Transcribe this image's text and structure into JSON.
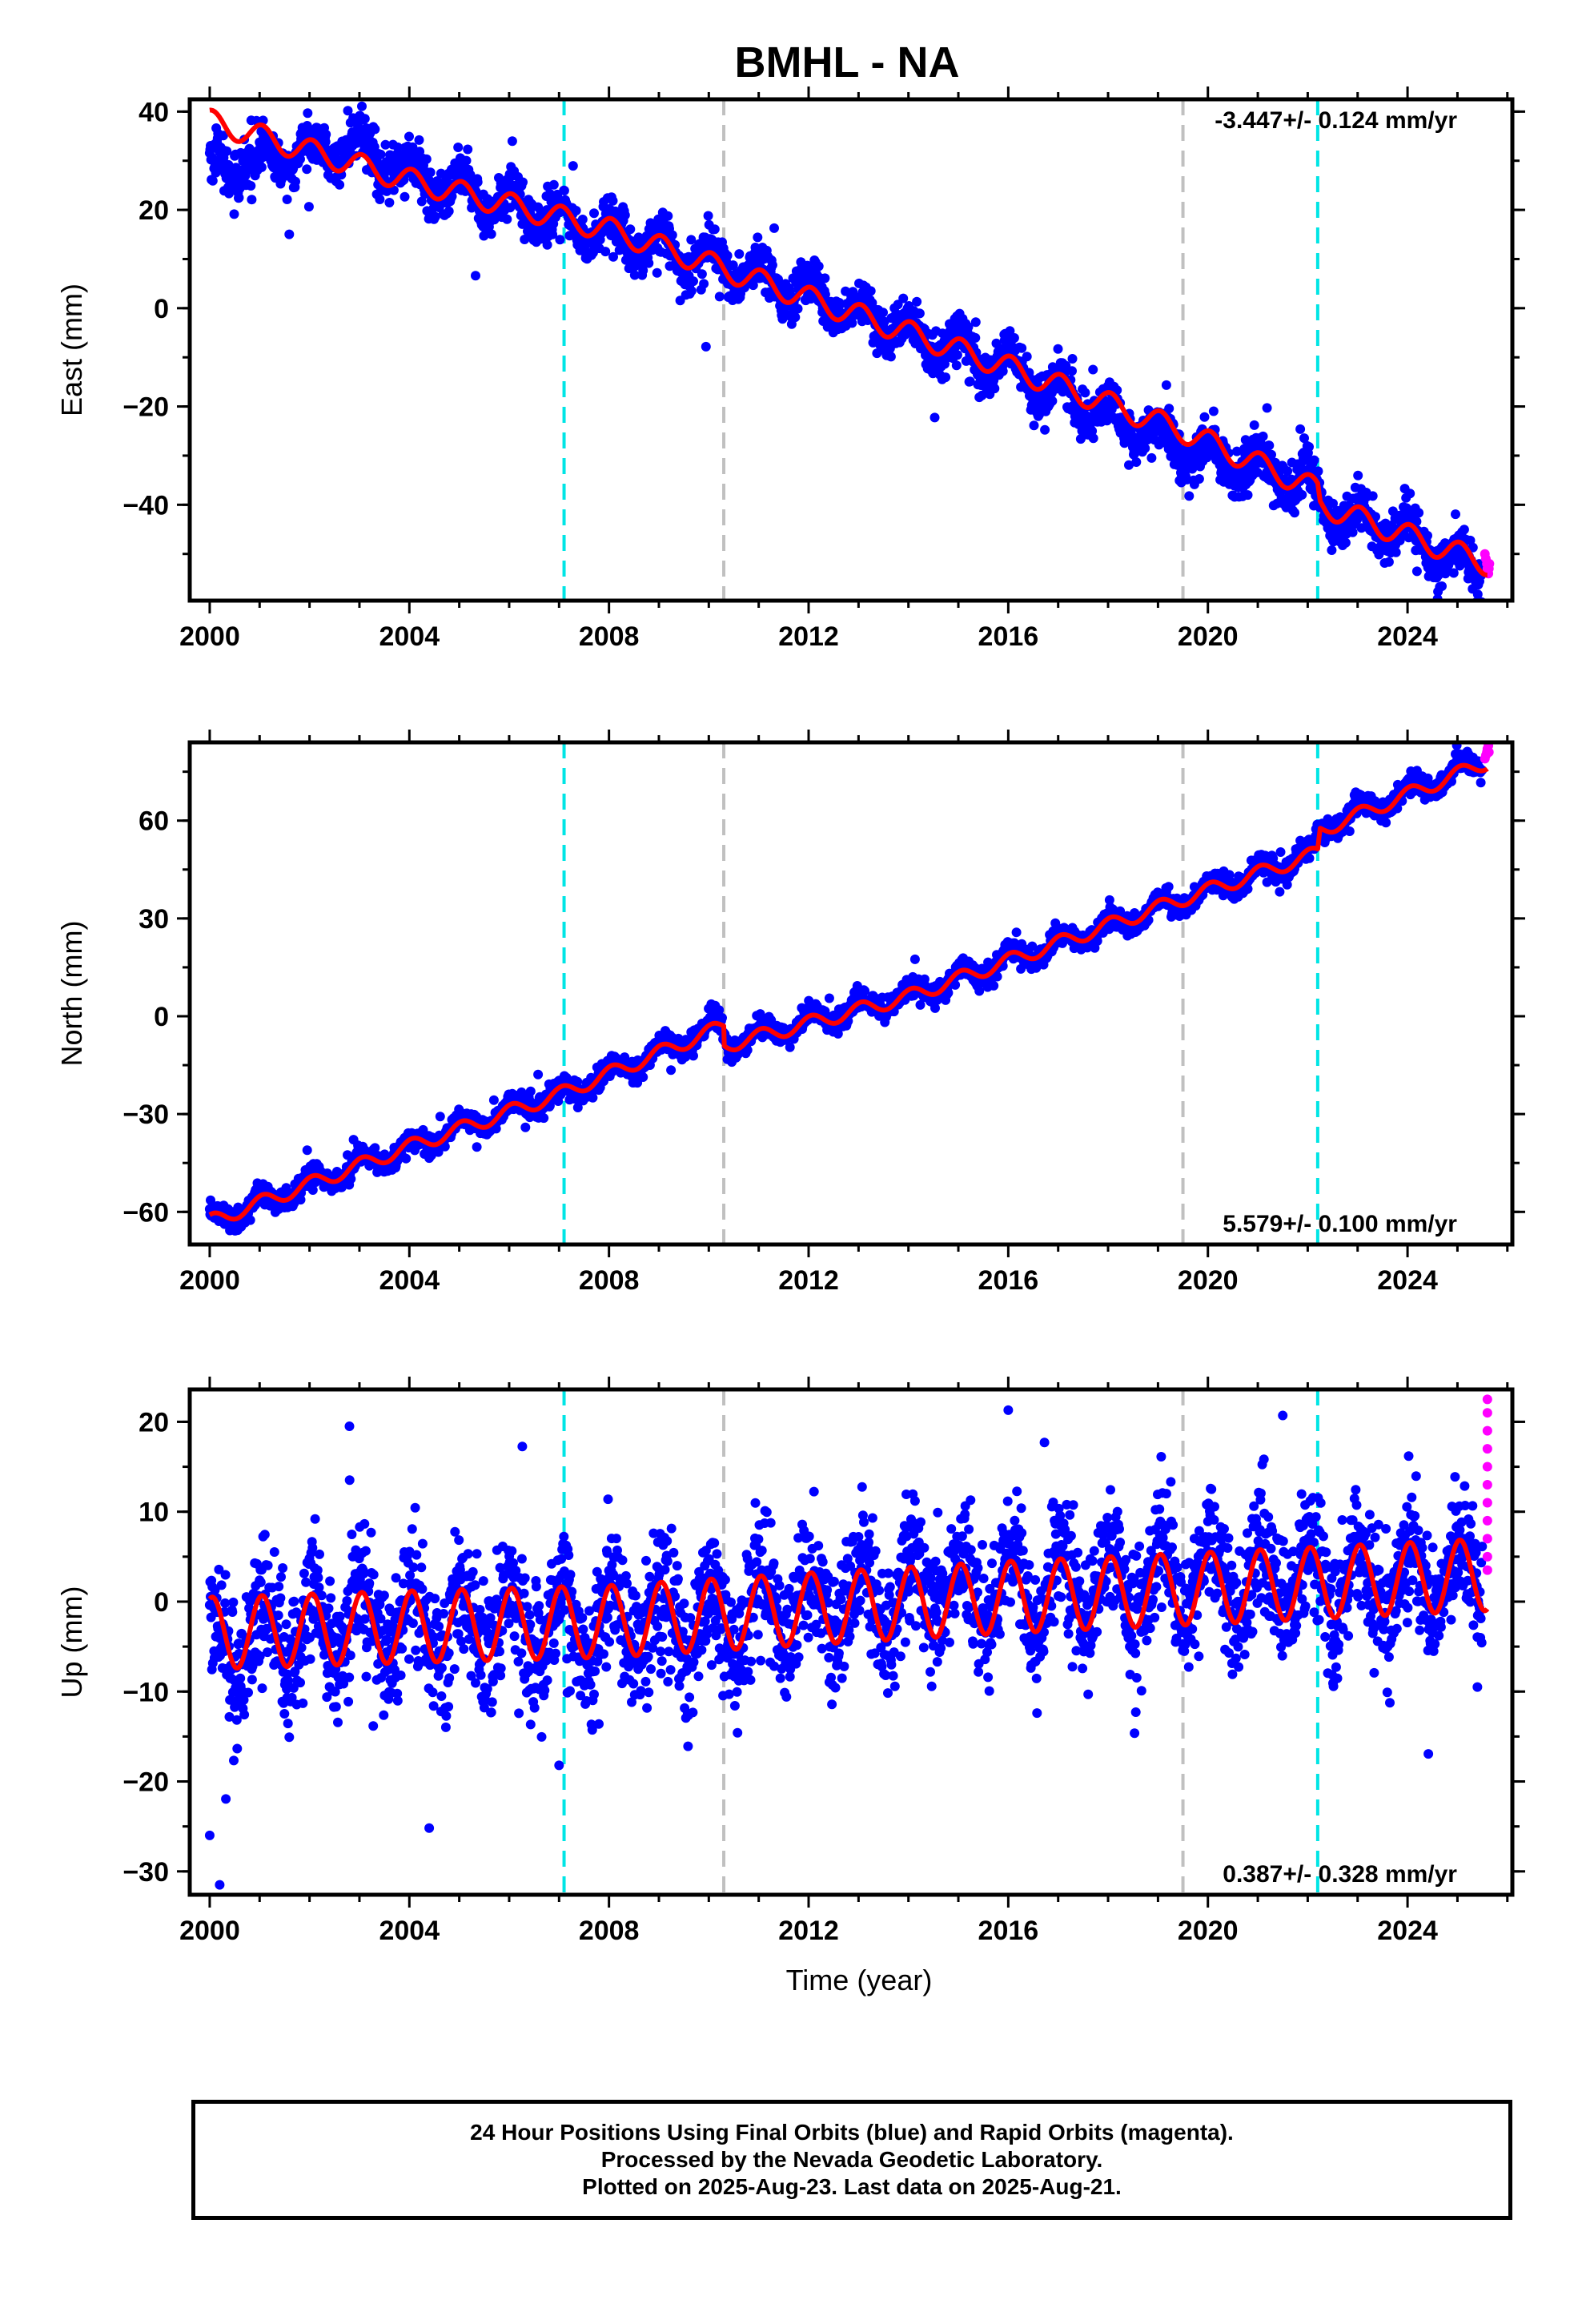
{
  "title": "BMHL - NA",
  "footer": {
    "line1": "24 Hour Positions Using Final Orbits (blue) and Rapid Orbits (magenta).",
    "line2": "Processed by the Nevada Geodetic Laboratory.",
    "line3": "Plotted on 2025-Aug-23. Last data on 2025-Aug-21."
  },
  "colors": {
    "final_orbits": "#0000ff",
    "rapid_orbits": "#ff00ff",
    "model_fit": "#ff0000",
    "equipment_change": "#00e5e5",
    "other_event": "#c0c0c0"
  },
  "chart_data": [
    {
      "type": "scatter",
      "panel": "east",
      "ylabel": "East (mm)",
      "xlabel": "",
      "xlim": [
        1999.6,
        2026.1
      ],
      "ylim": [
        -59.5,
        42.5
      ],
      "xticks": [
        2000,
        2004,
        2008,
        2012,
        2016,
        2020,
        2024
      ],
      "xtick_labels": [
        "2000",
        "2004",
        "2008",
        "2012",
        "2016",
        "2020",
        "2024"
      ],
      "yticks": [
        40,
        20,
        0,
        -20,
        -40
      ],
      "ytick_labels": [
        "40",
        "20",
        "0",
        "−20",
        "−40"
      ],
      "rate_label": "-3.447+/- 0.124 mm/yr",
      "rate_position": "top-right",
      "vertical_lines": [
        {
          "x": 2007.1,
          "color": "cyan"
        },
        {
          "x": 2010.3,
          "color": "gray"
        },
        {
          "x": 2019.5,
          "color": "gray"
        },
        {
          "x": 2022.2,
          "color": "cyan"
        }
      ],
      "series": [
        {
          "marker": "dot",
          "color": "blue",
          "x_range": [
            2000.0,
            2025.5
          ],
          "trend_points": [
            [
              2000.0,
              28
            ],
            [
              2002.0,
              32
            ],
            [
              2003.0,
              33
            ],
            [
              2004.0,
              27
            ],
            [
              2006.0,
              21
            ],
            [
              2008.0,
              15
            ],
            [
              2010.0,
              10
            ],
            [
              2012.0,
              3
            ],
            [
              2014.0,
              -5
            ],
            [
              2016.0,
              -12
            ],
            [
              2018.0,
              -22
            ],
            [
              2019.5,
              -28
            ],
            [
              2021.0,
              -33
            ],
            [
              2022.0,
              -35
            ],
            [
              2022.3,
              -41
            ],
            [
              2024.0,
              -46
            ],
            [
              2025.5,
              -54
            ]
          ],
          "seasonal_amplitude": 3.2,
          "scatter": 2.4
        },
        {
          "marker": "dot",
          "color": "magenta",
          "points": [
            [
              2025.55,
              -50
            ],
            [
              2025.57,
              -51
            ],
            [
              2025.59,
              -52
            ],
            [
              2025.6,
              -53
            ],
            [
              2025.62,
              -54
            ],
            [
              2025.63,
              -53
            ],
            [
              2025.64,
              -52
            ]
          ]
        },
        {
          "marker": "line",
          "color": "red",
          "trend_points": [
            [
              2000.0,
              38
            ],
            [
              2004.0,
              26
            ],
            [
              2008.0,
              16
            ],
            [
              2010.3,
              8
            ],
            [
              2012.0,
              2
            ],
            [
              2016.0,
              -12
            ],
            [
              2019.5,
              -25
            ],
            [
              2022.2,
              -37
            ],
            [
              2022.25,
              -40
            ],
            [
              2025.6,
              -52
            ]
          ],
          "seasonal_amplitude": 2.4,
          "x_range": [
            2000.0,
            2025.6
          ]
        }
      ]
    },
    {
      "type": "scatter",
      "panel": "north",
      "ylabel": "North (mm)",
      "xlabel": "",
      "xlim": [
        1999.6,
        2026.1
      ],
      "ylim": [
        -70.0,
        84.0
      ],
      "xticks": [
        2000,
        2004,
        2008,
        2012,
        2016,
        2020,
        2024
      ],
      "xtick_labels": [
        "2000",
        "2004",
        "2008",
        "2012",
        "2016",
        "2020",
        "2024"
      ],
      "yticks": [
        60,
        30,
        0,
        -30,
        -60
      ],
      "ytick_labels": [
        "60",
        "30",
        "0",
        "−30",
        "−60"
      ],
      "rate_label": "5.579+/- 0.100 mm/yr",
      "rate_position": "bottom-right",
      "vertical_lines": [
        {
          "x": 2007.1,
          "color": "cyan"
        },
        {
          "x": 2010.3,
          "color": "gray"
        },
        {
          "x": 2019.5,
          "color": "gray"
        },
        {
          "x": 2022.2,
          "color": "cyan"
        }
      ],
      "series": [
        {
          "marker": "dot",
          "color": "blue",
          "x_range": [
            2000.0,
            2025.5
          ],
          "trend_points": [
            [
              2000.0,
              -63
            ],
            [
              2004.0,
              -40
            ],
            [
              2007.0,
              -24
            ],
            [
              2010.2,
              -3
            ],
            [
              2010.4,
              -8
            ],
            [
              2014.0,
              6
            ],
            [
              2016.0,
              17
            ],
            [
              2019.5,
              36
            ],
            [
              2022.1,
              50
            ],
            [
              2022.3,
              58
            ],
            [
              2025.5,
              78
            ]
          ],
          "seasonal_amplitude": 2.8,
          "scatter": 1.6
        },
        {
          "marker": "dot",
          "color": "magenta",
          "points": [
            [
              2025.55,
              79
            ],
            [
              2025.57,
              80
            ],
            [
              2025.59,
              81
            ],
            [
              2025.6,
              82
            ],
            [
              2025.62,
              83
            ],
            [
              2025.63,
              81
            ]
          ]
        },
        {
          "marker": "line",
          "color": "red",
          "trend_points": [
            [
              2000.0,
              -63
            ],
            [
              2004.0,
              -40
            ],
            [
              2007.0,
              -24
            ],
            [
              2010.3,
              -3
            ],
            [
              2010.31,
              -9
            ],
            [
              2014.0,
              6
            ],
            [
              2016.0,
              17
            ],
            [
              2019.5,
              36
            ],
            [
              2022.2,
              50
            ],
            [
              2022.25,
              57
            ],
            [
              2025.6,
              78
            ]
          ],
          "seasonal_amplitude": 2.2,
          "x_range": [
            2000.0,
            2025.6
          ]
        }
      ]
    },
    {
      "type": "scatter",
      "panel": "up",
      "ylabel": "Up (mm)",
      "xlabel": "Time (year)",
      "xlim": [
        1999.6,
        2026.1
      ],
      "ylim": [
        -32.6,
        23.6
      ],
      "xticks": [
        2000,
        2004,
        2008,
        2012,
        2016,
        2020,
        2024
      ],
      "xtick_labels": [
        "2000",
        "2004",
        "2008",
        "2012",
        "2016",
        "2020",
        "2024"
      ],
      "yticks": [
        20,
        10,
        0,
        -10,
        -20,
        -30
      ],
      "ytick_labels": [
        "20",
        "10",
        "0",
        "−10",
        "−20",
        "−30"
      ],
      "rate_label": "0.387+/- 0.328 mm/yr",
      "rate_position": "bottom-right",
      "vertical_lines": [
        {
          "x": 2007.1,
          "color": "cyan"
        },
        {
          "x": 2010.3,
          "color": "gray"
        },
        {
          "x": 2019.5,
          "color": "gray"
        },
        {
          "x": 2022.2,
          "color": "cyan"
        }
      ],
      "series": [
        {
          "marker": "dot",
          "color": "blue",
          "x_range": [
            2000.0,
            2025.5
          ],
          "trend_points": [
            [
              2000.0,
              -5
            ],
            [
              2003.0,
              -2
            ],
            [
              2007.0,
              -3
            ],
            [
              2010.0,
              -2
            ],
            [
              2014.0,
              1
            ],
            [
              2018.0,
              2
            ],
            [
              2022.0,
              2
            ],
            [
              2025.5,
              3
            ]
          ],
          "seasonal_amplitude": 4.0,
          "scatter": 3.6,
          "outliers": [
            [
              2000.0,
              -26
            ],
            [
              2000.2,
              -31.5
            ],
            [
              2002.8,
              19.5
            ],
            [
              2007.0,
              -18.2
            ],
            [
              2016.0,
              21.3
            ],
            [
              2021.5,
              20.7
            ],
            [
              2025.4,
              -9.5
            ]
          ]
        },
        {
          "marker": "dot",
          "color": "magenta",
          "points": [
            [
              2025.6,
              22.5
            ],
            [
              2025.6,
              21
            ],
            [
              2025.6,
              19
            ],
            [
              2025.6,
              17
            ],
            [
              2025.6,
              15
            ],
            [
              2025.6,
              13
            ],
            [
              2025.6,
              11
            ],
            [
              2025.6,
              9
            ],
            [
              2025.6,
              7
            ],
            [
              2025.6,
              5
            ],
            [
              2025.6,
              3.5
            ]
          ]
        },
        {
          "marker": "line",
          "color": "red",
          "trend_points": [
            [
              2000.0,
              -3.5
            ],
            [
              2004.0,
              -2.8
            ],
            [
              2008.0,
              -2.2
            ],
            [
              2012.0,
              -0.8
            ],
            [
              2016.0,
              0.5
            ],
            [
              2020.0,
              1.5
            ],
            [
              2025.6,
              3.0
            ]
          ],
          "seasonal_amplitude": 4.0,
          "x_range": [
            2000.0,
            2025.6
          ]
        }
      ]
    }
  ]
}
